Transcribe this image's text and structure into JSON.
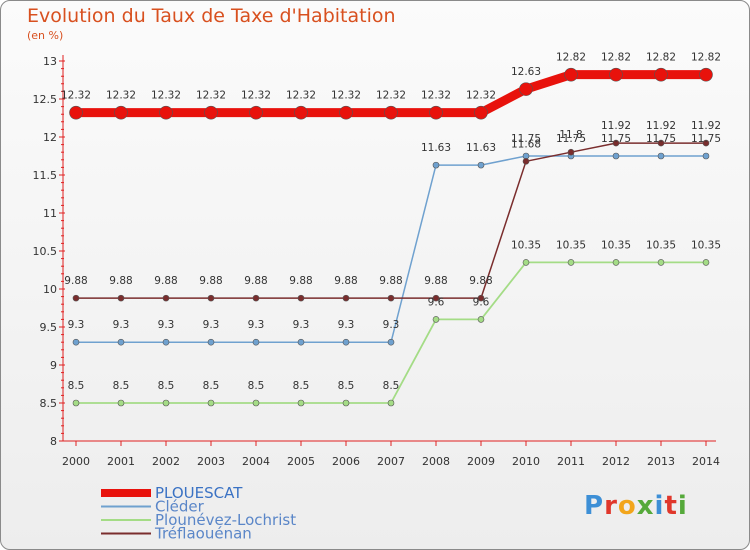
{
  "title": "Evolution du Taux de Taxe d'Habitation",
  "unit_label": "(en %)",
  "logo_text": "Proxiti",
  "chart_data": {
    "type": "line",
    "x": [
      "2000",
      "2001",
      "2002",
      "2003",
      "2004",
      "2005",
      "2006",
      "2007",
      "2008",
      "2009",
      "2010",
      "2011",
      "2012",
      "2013",
      "2014"
    ],
    "ylim": [
      8,
      13
    ],
    "yticks": [
      "8",
      "8.5",
      "9",
      "9.5",
      "10",
      "10.5",
      "11",
      "11.5",
      "12",
      "12.5",
      "13"
    ],
    "grid": false,
    "legend_position": "bottom-left",
    "series": [
      {
        "name": "PLOUESCAT",
        "color": "#e8120c",
        "line_width": 9,
        "point_radius": 6.5,
        "values": [
          12.32,
          12.32,
          12.32,
          12.32,
          12.32,
          12.32,
          12.32,
          12.32,
          12.32,
          12.32,
          12.63,
          12.82,
          12.82,
          12.82,
          12.82
        ],
        "labels": [
          "12.32",
          "12.32",
          "12.32",
          "12.32",
          "12.32",
          "12.32",
          "12.32",
          "12.32",
          "12.32",
          "12.32",
          "12.63",
          "12.82",
          "12.82",
          "12.82",
          "12.82"
        ]
      },
      {
        "name": "Cléder",
        "color": "#6fa1cf",
        "line_width": 1.5,
        "point_radius": 3,
        "values": [
          9.3,
          9.3,
          9.3,
          9.3,
          9.3,
          9.3,
          9.3,
          9.3,
          11.63,
          11.63,
          11.75,
          11.75,
          11.75,
          11.75,
          11.75
        ],
        "labels": [
          "9.3",
          "9.3",
          "9.3",
          "9.3",
          "9.3",
          "9.3",
          "9.3",
          "9.3",
          "11.63",
          "11.63",
          "11.75",
          "11.75",
          "11.75",
          "11.75",
          "11.75"
        ]
      },
      {
        "name": "Plounévez-Lochrist",
        "color": "#a4dc86",
        "line_width": 1.8,
        "point_radius": 3,
        "values": [
          8.5,
          8.5,
          8.5,
          8.5,
          8.5,
          8.5,
          8.5,
          8.5,
          9.6,
          9.6,
          10.35,
          10.35,
          10.35,
          10.35,
          10.35
        ],
        "labels": [
          "8.5",
          "8.5",
          "8.5",
          "8.5",
          "8.5",
          "8.5",
          "8.5",
          "8.5",
          "9.6",
          "9.6",
          "10.35",
          "10.35",
          "10.35",
          "10.35",
          "10.35"
        ]
      },
      {
        "name": "Tréflaouénan",
        "color": "#7a2d2d",
        "line_width": 1.5,
        "point_radius": 3,
        "values": [
          9.88,
          9.88,
          9.88,
          9.88,
          9.88,
          9.88,
          9.88,
          9.88,
          9.88,
          9.88,
          11.68,
          11.8,
          11.92,
          11.92,
          11.92
        ],
        "labels": [
          "9.88",
          "9.88",
          "9.88",
          "9.88",
          "9.88",
          "9.88",
          "9.88",
          "9.88",
          "9.88",
          "9.88",
          "11.68",
          "11.8",
          "11.92",
          "11.92",
          "11.92"
        ]
      }
    ]
  }
}
